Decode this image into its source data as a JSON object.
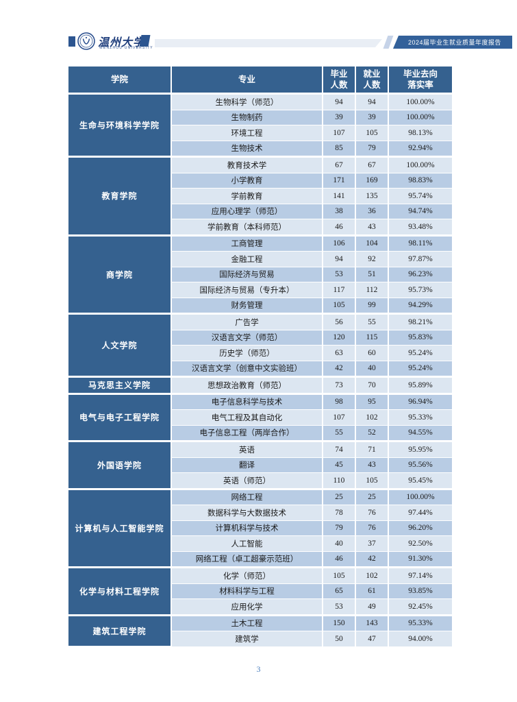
{
  "page": {
    "brand": {
      "university_name": "温州大学",
      "university_name_en": "WENZHOU UNIVERSITY"
    },
    "banner": {
      "title": "2024届毕业生就业质量年度报告"
    },
    "footer": {
      "page_number": "3"
    }
  },
  "colors": {
    "header_bg": "#35618F",
    "college_bg": "#35618F",
    "row_light": "#DCE6F1",
    "row_alt": "#B8CCE4",
    "brand_navy": "#1F3E7C",
    "banner_bg": "#33619A",
    "page_number_blue": "#4C7FBE"
  },
  "table": {
    "columns": [
      {
        "label": "学院"
      },
      {
        "label": "专业"
      },
      {
        "label": "毕业人数",
        "line1": "毕业",
        "line2": "人数"
      },
      {
        "label": "就业人数",
        "line1": "就业",
        "line2": "人数"
      },
      {
        "label": "毕业去向落实率",
        "line1": "毕业去向",
        "line2": "落实率"
      }
    ],
    "groups": [
      {
        "college": "生命与环境科学学院",
        "majors": [
          {
            "name": "生物科学（师范）",
            "graduates": "94",
            "employed": "94",
            "rate": "100.00%"
          },
          {
            "name": "生物制药",
            "graduates": "39",
            "employed": "39",
            "rate": "100.00%"
          },
          {
            "name": "环境工程",
            "graduates": "107",
            "employed": "105",
            "rate": "98.13%"
          },
          {
            "name": "生物技术",
            "graduates": "85",
            "employed": "79",
            "rate": "92.94%"
          }
        ]
      },
      {
        "college": "教育学院",
        "majors": [
          {
            "name": "教育技术学",
            "graduates": "67",
            "employed": "67",
            "rate": "100.00%"
          },
          {
            "name": "小学教育",
            "graduates": "171",
            "employed": "169",
            "rate": "98.83%"
          },
          {
            "name": "学前教育",
            "graduates": "141",
            "employed": "135",
            "rate": "95.74%"
          },
          {
            "name": "应用心理学（师范）",
            "graduates": "38",
            "employed": "36",
            "rate": "94.74%"
          },
          {
            "name": "学前教育（本科师范）",
            "graduates": "46",
            "employed": "43",
            "rate": "93.48%"
          }
        ]
      },
      {
        "college": "商学院",
        "majors": [
          {
            "name": "工商管理",
            "graduates": "106",
            "employed": "104",
            "rate": "98.11%"
          },
          {
            "name": "金融工程",
            "graduates": "94",
            "employed": "92",
            "rate": "97.87%"
          },
          {
            "name": "国际经济与贸易",
            "graduates": "53",
            "employed": "51",
            "rate": "96.23%"
          },
          {
            "name": "国际经济与贸易（专升本）",
            "graduates": "117",
            "employed": "112",
            "rate": "95.73%"
          },
          {
            "name": "财务管理",
            "graduates": "105",
            "employed": "99",
            "rate": "94.29%"
          }
        ]
      },
      {
        "college": "人文学院",
        "majors": [
          {
            "name": "广告学",
            "graduates": "56",
            "employed": "55",
            "rate": "98.21%"
          },
          {
            "name": "汉语言文学（师范）",
            "graduates": "120",
            "employed": "115",
            "rate": "95.83%"
          },
          {
            "name": "历史学（师范）",
            "graduates": "63",
            "employed": "60",
            "rate": "95.24%"
          },
          {
            "name": "汉语言文学（创意中文实验班）",
            "graduates": "42",
            "employed": "40",
            "rate": "95.24%"
          }
        ]
      },
      {
        "college": "马克思主义学院",
        "majors": [
          {
            "name": "思想政治教育（师范）",
            "graduates": "73",
            "employed": "70",
            "rate": "95.89%"
          }
        ]
      },
      {
        "college": "电气与电子工程学院",
        "majors": [
          {
            "name": "电子信息科学与技术",
            "graduates": "98",
            "employed": "95",
            "rate": "96.94%"
          },
          {
            "name": "电气工程及其自动化",
            "graduates": "107",
            "employed": "102",
            "rate": "95.33%"
          },
          {
            "name": "电子信息工程（两岸合作）",
            "graduates": "55",
            "employed": "52",
            "rate": "94.55%"
          }
        ]
      },
      {
        "college": "外国语学院",
        "majors": [
          {
            "name": "英语",
            "graduates": "74",
            "employed": "71",
            "rate": "95.95%"
          },
          {
            "name": "翻译",
            "graduates": "45",
            "employed": "43",
            "rate": "95.56%"
          },
          {
            "name": "英语（师范）",
            "graduates": "110",
            "employed": "105",
            "rate": "95.45%"
          }
        ]
      },
      {
        "college": "计算机与人工智能学院",
        "majors": [
          {
            "name": "网络工程",
            "graduates": "25",
            "employed": "25",
            "rate": "100.00%"
          },
          {
            "name": "数据科学与大数据技术",
            "graduates": "78",
            "employed": "76",
            "rate": "97.44%"
          },
          {
            "name": "计算机科学与技术",
            "graduates": "79",
            "employed": "76",
            "rate": "96.20%"
          },
          {
            "name": "人工智能",
            "graduates": "40",
            "employed": "37",
            "rate": "92.50%"
          },
          {
            "name": "网络工程（卓工超豪示范班）",
            "graduates": "46",
            "employed": "42",
            "rate": "91.30%"
          }
        ]
      },
      {
        "college": "化学与材料工程学院",
        "majors": [
          {
            "name": "化学（师范）",
            "graduates": "105",
            "employed": "102",
            "rate": "97.14%"
          },
          {
            "name": "材料科学与工程",
            "graduates": "65",
            "employed": "61",
            "rate": "93.85%"
          },
          {
            "name": "应用化学",
            "graduates": "53",
            "employed": "49",
            "rate": "92.45%"
          }
        ]
      },
      {
        "college": "建筑工程学院",
        "majors": [
          {
            "name": "土木工程",
            "graduates": "150",
            "employed": "143",
            "rate": "95.33%"
          },
          {
            "name": "建筑学",
            "graduates": "50",
            "employed": "47",
            "rate": "94.00%"
          }
        ]
      }
    ]
  }
}
